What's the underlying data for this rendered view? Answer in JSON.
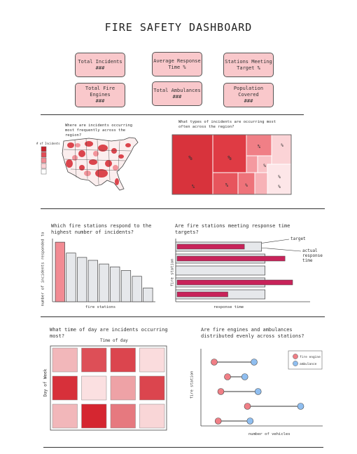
{
  "title": "FIRE SAFETY DASHBOARD",
  "kpis": [
    {
      "label": "Total Incidents",
      "value": "###"
    },
    {
      "label": "Average Response Time %",
      "value": ""
    },
    {
      "label": "Stations Meeting Target %",
      "value": ""
    },
    {
      "label": "Total Fire Engines",
      "value": "###"
    },
    {
      "label": "Total Ambulances",
      "value": "###"
    },
    {
      "label": "Population Covered",
      "value": "###"
    }
  ],
  "map": {
    "question": "Where are incidents occurring most frequently across the region?",
    "legend_title": "# of Incidents"
  },
  "treemap": {
    "question": "What types of incidents are occurring most often across the region?",
    "cell_label": "%"
  },
  "stations": {
    "question": "Which fire stations respond to the highest number of incidents?",
    "ylabel": "number of incidents responded to",
    "xlabel": "fire stations"
  },
  "targets": {
    "question": "Are fire stations meeting response time targets?",
    "ylabel": "fire station",
    "xlabel": "response time",
    "annot_target": "target",
    "annot_actual": "actual response time"
  },
  "heatmap": {
    "question": "What time of day are incidents occurring most?",
    "xlabel": "Time of day",
    "ylabel": "Day of Week"
  },
  "dumbbell": {
    "question": "Are fire engines and ambulances distributed evenly across stations?",
    "ylabel": "fire station",
    "xlabel": "number of vehicles",
    "legend": [
      {
        "name": "fire engine",
        "color": "#f07f86"
      },
      {
        "name": "ambulance",
        "color": "#8fbef0"
      }
    ]
  },
  "chart_data": [
    {
      "type": "bar",
      "values": [
        82,
        67,
        61,
        57,
        52,
        48,
        43,
        35,
        19
      ],
      "highlight_color": "#f28b93",
      "base_color": "#e6e8eb"
    },
    {
      "type": "bar",
      "orientation": "horizontal",
      "series": [
        {
          "name": "target",
          "values": [
            74,
            77,
            77,
            77,
            77
          ]
        },
        {
          "name": "actual response time",
          "values": [
            53,
            85,
            0,
            91,
            40
          ]
        }
      ]
    },
    {
      "type": "heatmap",
      "rows": 3,
      "cols": 4,
      "values": [
        [
          0.3,
          0.8,
          0.85,
          0.12
        ],
        [
          0.95,
          0.1,
          0.4,
          0.85
        ],
        [
          0.3,
          1.0,
          0.6,
          0.15
        ]
      ]
    },
    {
      "type": "scatter",
      "series": [
        {
          "name": "fire engine",
          "values": [
            1,
            2,
            1.5,
            3.5,
            1.3
          ]
        },
        {
          "name": "ambulance",
          "values": [
            4,
            3.3,
            4.3,
            7.5,
            3.7
          ]
        }
      ]
    },
    {
      "type": "heatmap",
      "title": "treemap",
      "values": [
        {
          "r": 0.9
        },
        {
          "r": 0.85
        },
        {
          "r": 0.75
        },
        {
          "r": 0.6
        },
        {
          "r": 0.55
        },
        {
          "r": 0.45
        },
        {
          "r": 0.3
        },
        {
          "r": 0.25
        },
        {
          "r": 0.2
        },
        {
          "r": 0.1
        }
      ]
    }
  ]
}
